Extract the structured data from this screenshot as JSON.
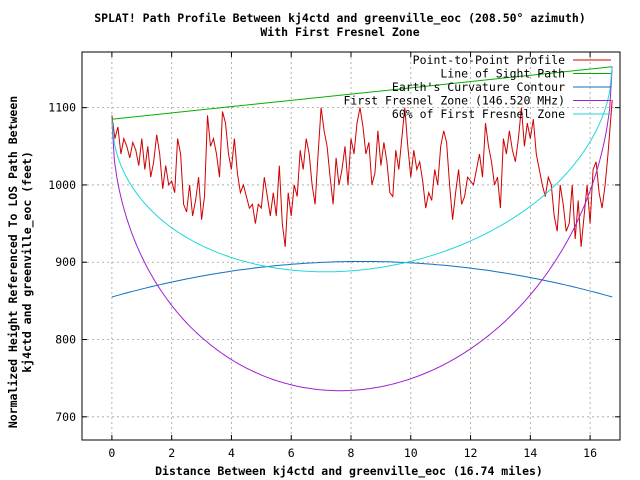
{
  "chart_data": {
    "type": "line",
    "title": "SPLAT! Path Profile Between kj4ctd and greenville_eoc (208.50° azimuth)",
    "subtitle": "With First Fresnel Zone",
    "xlabel": "Distance Between kj4ctd and greenville_eoc (16.74 miles)",
    "ylabel_line1": "Normalized Height Referenced To LOS Path Between",
    "ylabel_line2": "kj4ctd and greenville_eoc (feet)",
    "xlim": [
      -1,
      17
    ],
    "ylim": [
      670,
      1172
    ],
    "xticks": [
      0,
      2,
      4,
      6,
      8,
      10,
      12,
      14,
      16
    ],
    "yticks": [
      700,
      800,
      900,
      1000,
      1100
    ],
    "grid": true,
    "legend_position": "top-right",
    "colors": {
      "terrain": "#d00000",
      "los": "#00b000",
      "curvature": "#1070c0",
      "fresnel": "#a020d0",
      "fresnel60": "#20d8d8"
    },
    "series": [
      {
        "name": "Point-to-Point Profile",
        "key": "terrain",
        "x": [
          0.0,
          0.1,
          0.2,
          0.3,
          0.4,
          0.5,
          0.6,
          0.7,
          0.8,
          0.9,
          1.0,
          1.1,
          1.2,
          1.3,
          1.4,
          1.5,
          1.6,
          1.7,
          1.8,
          1.9,
          2.0,
          2.1,
          2.2,
          2.3,
          2.4,
          2.5,
          2.6,
          2.7,
          2.8,
          2.9,
          3.0,
          3.1,
          3.2,
          3.3,
          3.4,
          3.5,
          3.6,
          3.7,
          3.8,
          3.9,
          4.0,
          4.1,
          4.2,
          4.3,
          4.4,
          4.5,
          4.6,
          4.7,
          4.8,
          4.9,
          5.0,
          5.1,
          5.2,
          5.3,
          5.4,
          5.5,
          5.6,
          5.7,
          5.8,
          5.9,
          6.0,
          6.1,
          6.2,
          6.3,
          6.4,
          6.5,
          6.6,
          6.7,
          6.8,
          6.9,
          7.0,
          7.1,
          7.2,
          7.3,
          7.4,
          7.5,
          7.6,
          7.7,
          7.8,
          7.9,
          8.0,
          8.1,
          8.2,
          8.3,
          8.4,
          8.5,
          8.6,
          8.7,
          8.8,
          8.9,
          9.0,
          9.1,
          9.2,
          9.3,
          9.4,
          9.5,
          9.6,
          9.7,
          9.8,
          9.9,
          10.0,
          10.1,
          10.2,
          10.3,
          10.4,
          10.5,
          10.6,
          10.7,
          10.8,
          10.9,
          11.0,
          11.1,
          11.2,
          11.3,
          11.4,
          11.5,
          11.6,
          11.7,
          11.8,
          11.9,
          12.0,
          12.1,
          12.2,
          12.3,
          12.4,
          12.5,
          12.6,
          12.7,
          12.8,
          12.9,
          13.0,
          13.1,
          13.2,
          13.3,
          13.4,
          13.5,
          13.6,
          13.7,
          13.8,
          13.9,
          14.0,
          14.1,
          14.2,
          14.3,
          14.4,
          14.5,
          14.6,
          14.7,
          14.8,
          14.9,
          15.0,
          15.1,
          15.2,
          15.3,
          15.4,
          15.5,
          15.6,
          15.7,
          15.8,
          15.9,
          16.0,
          16.1,
          16.2,
          16.3,
          16.4,
          16.5,
          16.6,
          16.74
        ],
        "y": [
          1090,
          1060,
          1075,
          1040,
          1060,
          1050,
          1035,
          1055,
          1045,
          1025,
          1060,
          1020,
          1050,
          1010,
          1030,
          1065,
          1040,
          995,
          1025,
          1000,
          1005,
          990,
          1060,
          1040,
          975,
          965,
          1000,
          960,
          980,
          1010,
          955,
          985,
          1090,
          1050,
          1060,
          1040,
          1010,
          1095,
          1080,
          1040,
          1020,
          1060,
          1015,
          990,
          1000,
          985,
          970,
          975,
          950,
          975,
          970,
          1010,
          985,
          960,
          990,
          960,
          1025,
          950,
          920,
          990,
          960,
          1000,
          985,
          1045,
          1020,
          1060,
          1040,
          1000,
          975,
          1040,
          1100,
          1070,
          1050,
          1010,
          975,
          1035,
          1000,
          1020,
          1050,
          1000,
          1060,
          1040,
          1080,
          1100,
          1075,
          1040,
          1055,
          1000,
          1015,
          1070,
          1025,
          1055,
          1030,
          990,
          985,
          1045,
          1020,
          1060,
          1100,
          1050,
          1010,
          1045,
          1020,
          1030,
          1005,
          970,
          990,
          980,
          1020,
          1000,
          1050,
          1070,
          1055,
          1000,
          955,
          990,
          1020,
          975,
          985,
          1010,
          1005,
          1000,
          1020,
          1040,
          1010,
          1080,
          1050,
          1030,
          1000,
          1010,
          970,
          1060,
          1040,
          1070,
          1045,
          1030,
          1060,
          1100,
          1050,
          1080,
          1060,
          1085,
          1040,
          1020,
          1000,
          985,
          1010,
          1000,
          960,
          940,
          1000,
          975,
          940,
          950,
          1000,
          930,
          980,
          920,
          960,
          1000,
          950,
          1020,
          1030,
          990,
          970,
          1000,
          1040,
          1110
        ]
      },
      {
        "name": "Line of Sight Path",
        "key": "los",
        "x": [
          0,
          16.74
        ],
        "y": [
          1085,
          1153
        ]
      },
      {
        "name": "Earth's Curvature Contour",
        "key": "curvature",
        "shape": "parabola",
        "x": [
          0,
          8.37,
          16.74
        ],
        "y": [
          855,
          901,
          855
        ]
      },
      {
        "name": "First Fresnel Zone (146.520 MHz)",
        "key": "fresnel",
        "shape": "ellipse-lower",
        "x": [
          0,
          7.9,
          16.74
        ],
        "y": [
          1085,
          734,
          1153
        ]
      },
      {
        "name": "60% of First Fresnel Zone",
        "key": "fresnel60",
        "shape": "ellipse-lower",
        "x": [
          0,
          7.6,
          16.74
        ],
        "y": [
          1085,
          888,
          1153
        ]
      }
    ]
  }
}
